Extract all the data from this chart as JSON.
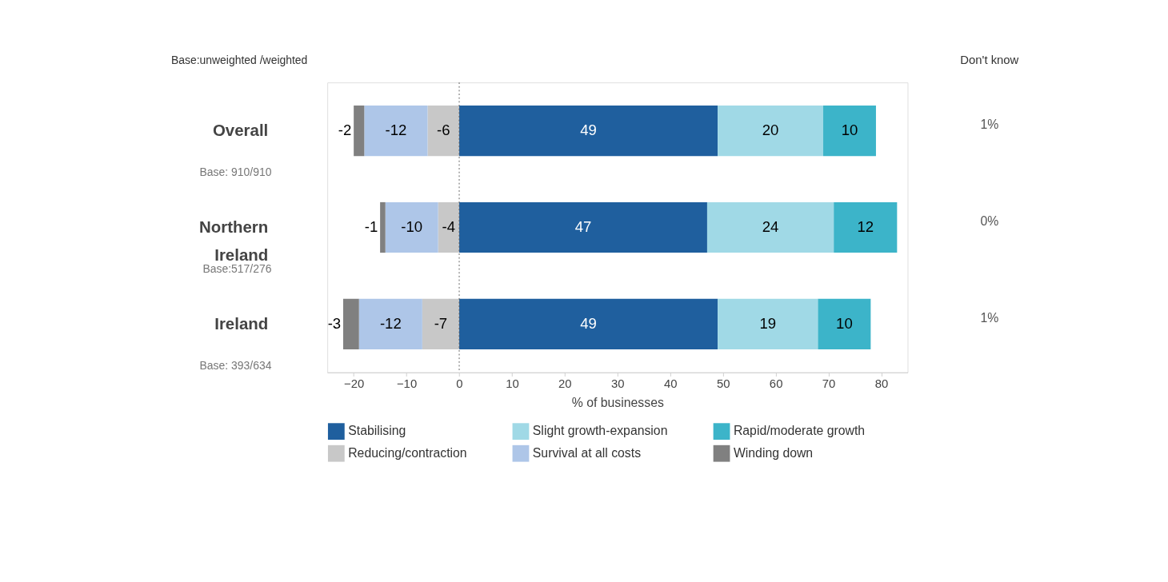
{
  "chart_data": {
    "type": "bar",
    "orientation": "horizontal",
    "stacked": true,
    "categories": [
      "Overall",
      "Northern Ireland",
      "Ireland"
    ],
    "series": [
      {
        "name": "Stabilising",
        "color": "#1f5f9e",
        "values": [
          49,
          47,
          49
        ]
      },
      {
        "name": "Slight growth-expansion",
        "color": "#a0d9e6",
        "values": [
          20,
          24,
          19
        ]
      },
      {
        "name": "Rapid/moderate growth",
        "color": "#3cb4c9",
        "values": [
          10,
          12,
          10
        ]
      },
      {
        "name": "Reducing/contraction",
        "color": "#c8c8c8",
        "values": [
          -6,
          -4,
          -7
        ]
      },
      {
        "name": "Survival at all costs",
        "color": "#aec6e8",
        "values": [
          -12,
          -10,
          -12
        ]
      },
      {
        "name": "Winding down",
        "color": "#808080",
        "values": [
          -2,
          -1,
          -3
        ]
      }
    ],
    "xlabel": "% of businesses",
    "xlim": [
      -25,
      85
    ],
    "xticks": [
      -20,
      -10,
      0,
      10,
      20,
      30,
      40,
      50,
      60,
      70,
      80
    ],
    "data_labels": true,
    "grid": false,
    "legend": "bottom",
    "ref_lines": [
      {
        "axis": "x",
        "value": 0,
        "line_style": "dotted",
        "color": "#555555"
      }
    ],
    "annotations": [
      "Base:unweighted /weighted",
      "Don't know",
      "Base: 910/910",
      "Base:517/276",
      "Base: 393/634",
      "1%",
      "0%",
      "1%"
    ]
  }
}
